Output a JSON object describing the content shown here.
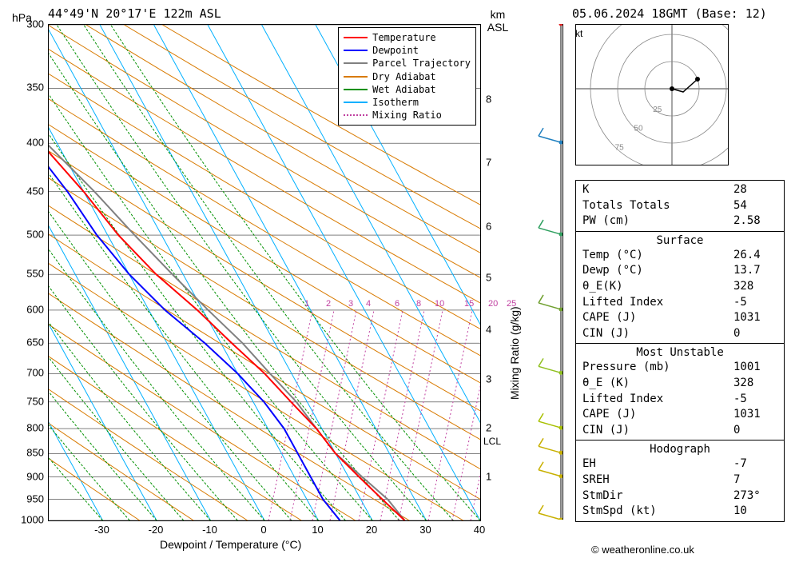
{
  "title": "44°49'N 20°17'E 122m ASL",
  "timestamp": "05.06.2024 18GMT (Base: 12)",
  "axes": {
    "y_left": {
      "label": "hPa",
      "ticks": [
        300,
        350,
        400,
        450,
        500,
        550,
        600,
        650,
        700,
        750,
        800,
        850,
        900,
        950,
        1000
      ],
      "min": 1000,
      "max": 300
    },
    "y_right": {
      "label": "km ASL",
      "ticks": [
        1,
        2,
        3,
        4,
        5,
        6,
        7,
        8
      ],
      "side_label": "Mixing Ratio (g/kg)"
    },
    "x": {
      "label": "Dewpoint / Temperature (°C)",
      "ticks": [
        -30,
        -20,
        -10,
        0,
        10,
        20,
        30,
        40
      ],
      "min": -40,
      "max": 40
    }
  },
  "legend": [
    {
      "label": "Temperature",
      "color": "#ff0000",
      "style": "solid"
    },
    {
      "label": "Dewpoint",
      "color": "#0000ff",
      "style": "solid"
    },
    {
      "label": "Parcel Trajectory",
      "color": "#808080",
      "style": "solid"
    },
    {
      "label": "Dry Adiabat",
      "color": "#d87a00",
      "style": "solid"
    },
    {
      "label": "Wet Adiabat",
      "color": "#009000",
      "style": "solid"
    },
    {
      "label": "Isotherm",
      "color": "#00b0ff",
      "style": "solid"
    },
    {
      "label": "Mixing Ratio",
      "color": "#c040a0",
      "style": "dotted"
    }
  ],
  "lcl_label": "LCL",
  "kt_label": "kt",
  "mixing_labels": [
    "1",
    "2",
    "3",
    "4",
    "6",
    "8",
    "10",
    "15",
    "20",
    "25"
  ],
  "mixing_x": [
    275,
    302,
    330,
    352,
    388,
    415,
    438,
    475,
    505,
    528
  ],
  "temperature": {
    "color": "#ff0000",
    "width": 2,
    "points": [
      [
        26,
        1000
      ],
      [
        24,
        950
      ],
      [
        22,
        900
      ],
      [
        20,
        850
      ],
      [
        19,
        800
      ],
      [
        17,
        750
      ],
      [
        15,
        700
      ],
      [
        12,
        650
      ],
      [
        9,
        600
      ],
      [
        5,
        550
      ],
      [
        2,
        500
      ],
      [
        0,
        450
      ],
      [
        -3,
        400
      ],
      [
        -7,
        350
      ],
      [
        -10,
        300
      ]
    ]
  },
  "dewpoint": {
    "color": "#0000ff",
    "width": 2,
    "points": [
      [
        14,
        1000
      ],
      [
        13,
        950
      ],
      [
        13,
        900
      ],
      [
        13,
        850
      ],
      [
        13,
        800
      ],
      [
        12,
        750
      ],
      [
        10,
        700
      ],
      [
        7,
        650
      ],
      [
        3,
        600
      ],
      [
        0,
        550
      ],
      [
        -2,
        500
      ],
      [
        -3,
        450
      ],
      [
        -5,
        400
      ],
      [
        -8,
        350
      ],
      [
        -20,
        300
      ]
    ]
  },
  "parcel": {
    "color": "#808080",
    "width": 2,
    "points": [
      [
        26,
        1000
      ],
      [
        25,
        950
      ],
      [
        20,
        850
      ],
      [
        19,
        800
      ],
      [
        18,
        750
      ],
      [
        16,
        700
      ],
      [
        14,
        650
      ],
      [
        11,
        600
      ],
      [
        8,
        550
      ],
      [
        5,
        500
      ],
      [
        2,
        450
      ],
      [
        -2,
        400
      ],
      [
        -5,
        350
      ],
      [
        -9,
        300
      ]
    ]
  },
  "background_lines": {
    "dry_adiabat": {
      "color": "#d87a00",
      "width": 1
    },
    "wet_adiabat": {
      "color": "#009000",
      "width": 1,
      "dash": "3,2"
    },
    "isotherm": {
      "color": "#00b0ff",
      "width": 1
    },
    "mixing": {
      "color": "#c040a0",
      "width": 1,
      "dash": "2,3"
    }
  },
  "wind_barbs": [
    {
      "p": 1000,
      "color": "#c8b000"
    },
    {
      "p": 900,
      "color": "#c8b000"
    },
    {
      "p": 850,
      "color": "#c8b000"
    },
    {
      "p": 800,
      "color": "#a8c000"
    },
    {
      "p": 700,
      "color": "#90c020"
    },
    {
      "p": 600,
      "color": "#70a030"
    },
    {
      "p": 500,
      "color": "#30a060"
    },
    {
      "p": 400,
      "color": "#2080c0"
    },
    {
      "p": 300,
      "color": "#e02020"
    }
  ],
  "hodo": {
    "rings": [
      25,
      50,
      75
    ]
  },
  "indices": {
    "top": [
      {
        "k": "K",
        "v": "28"
      },
      {
        "k": "Totals Totals",
        "v": "54"
      },
      {
        "k": "PW (cm)",
        "v": "2.58"
      }
    ],
    "surface_hdr": "Surface",
    "surface": [
      {
        "k": "Temp (°C)",
        "v": "26.4"
      },
      {
        "k": "Dewp (°C)",
        "v": "13.7"
      },
      {
        "k": "θ_E(K)",
        "v": "328"
      },
      {
        "k": "Lifted Index",
        "v": "-5"
      },
      {
        "k": "CAPE (J)",
        "v": "1031"
      },
      {
        "k": "CIN (J)",
        "v": "0"
      }
    ],
    "unstable_hdr": "Most Unstable",
    "unstable": [
      {
        "k": "Pressure (mb)",
        "v": "1001"
      },
      {
        "k": "θ_E (K)",
        "v": "328"
      },
      {
        "k": "Lifted Index",
        "v": "-5"
      },
      {
        "k": "CAPE (J)",
        "v": "1031"
      },
      {
        "k": "CIN (J)",
        "v": "0"
      }
    ],
    "hodo_hdr": "Hodograph",
    "hodo": [
      {
        "k": "EH",
        "v": "-7"
      },
      {
        "k": "SREH",
        "v": "7"
      },
      {
        "k": "StmDir",
        "v": "273°"
      },
      {
        "k": "StmSpd (kt)",
        "v": "10"
      }
    ]
  },
  "copyright": "© weatheronline.co.uk"
}
